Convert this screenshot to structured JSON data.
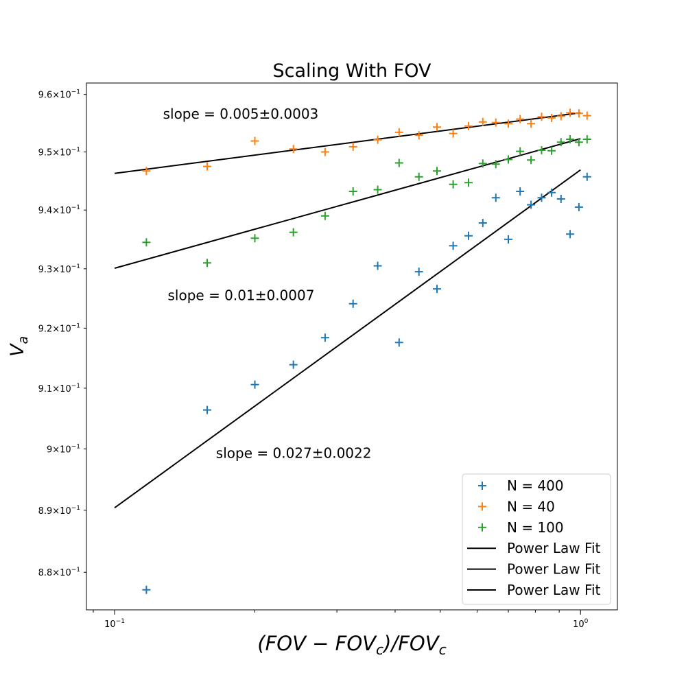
{
  "chart_data": {
    "type": "scatter",
    "title": "Scaling With FOV",
    "xlabel": "(FOV − FOV_c)/FOV_c",
    "ylabel": "V_a",
    "xscale": "log",
    "yscale": "log",
    "xlim": [
      0.087,
      1.2
    ],
    "ylim": [
      0.874,
      0.962
    ],
    "xticks": [
      {
        "value": 0.1,
        "base": "10",
        "exp": "−1"
      },
      {
        "value": 1.0,
        "base": "10",
        "exp": "0"
      }
    ],
    "yticks": [
      {
        "value": 0.88,
        "mant": "8.8",
        "exp": "−1"
      },
      {
        "value": 0.89,
        "mant": "8.9",
        "exp": "−1"
      },
      {
        "value": 0.9,
        "mant": "9",
        "exp": "−1"
      },
      {
        "value": 0.91,
        "mant": "9.1",
        "exp": "−1"
      },
      {
        "value": 0.92,
        "mant": "9.2",
        "exp": "−1"
      },
      {
        "value": 0.93,
        "mant": "9.3",
        "exp": "−1"
      },
      {
        "value": 0.94,
        "mant": "9.4",
        "exp": "−1"
      },
      {
        "value": 0.95,
        "mant": "9.5",
        "exp": "−1"
      },
      {
        "value": 0.96,
        "mant": "9.6",
        "exp": "−1"
      }
    ],
    "series": [
      {
        "name": "N = 400",
        "color": "#1f77b4",
        "marker": "plus",
        "x": [
          0.117,
          0.158,
          0.2,
          0.242,
          0.283,
          0.325,
          0.367,
          0.408,
          0.45,
          0.492,
          0.533,
          0.575,
          0.617,
          0.658,
          0.7,
          0.742,
          0.783,
          0.825,
          0.867,
          0.908,
          0.95,
          0.992,
          1.033
        ],
        "y": [
          0.8772,
          0.9064,
          0.9106,
          0.9139,
          0.9184,
          0.9241,
          0.9305,
          0.9176,
          0.9295,
          0.9266,
          0.9339,
          0.9356,
          0.9378,
          0.9421,
          0.935,
          0.9432,
          0.9409,
          0.9421,
          0.943,
          0.9419,
          0.9359,
          0.9405,
          0.9457
        ]
      },
      {
        "name": "N = 40",
        "color": "#ff7f0e",
        "marker": "plus",
        "x": [
          0.117,
          0.158,
          0.2,
          0.242,
          0.283,
          0.325,
          0.367,
          0.408,
          0.45,
          0.492,
          0.533,
          0.575,
          0.617,
          0.658,
          0.7,
          0.742,
          0.783,
          0.825,
          0.867,
          0.908,
          0.95,
          0.992,
          1.033
        ],
        "y": [
          0.9467,
          0.9475,
          0.9519,
          0.9505,
          0.95,
          0.9509,
          0.9521,
          0.9534,
          0.9529,
          0.9543,
          0.9532,
          0.9545,
          0.9552,
          0.9551,
          0.9549,
          0.9557,
          0.9549,
          0.9561,
          0.9559,
          0.9562,
          0.9568,
          0.9567,
          0.9563
        ]
      },
      {
        "name": "N = 100",
        "color": "#2ca02c",
        "marker": "plus",
        "x": [
          0.117,
          0.158,
          0.2,
          0.242,
          0.283,
          0.325,
          0.367,
          0.408,
          0.45,
          0.492,
          0.533,
          0.575,
          0.617,
          0.658,
          0.7,
          0.742,
          0.783,
          0.825,
          0.867,
          0.908,
          0.95,
          0.992,
          1.033
        ],
        "y": [
          0.9345,
          0.931,
          0.9352,
          0.9362,
          0.939,
          0.9432,
          0.9435,
          0.9481,
          0.9457,
          0.9467,
          0.9444,
          0.9447,
          0.948,
          0.9479,
          0.9487,
          0.9501,
          0.9486,
          0.9503,
          0.9502,
          0.9517,
          0.9522,
          0.9517,
          0.9522
        ]
      }
    ],
    "fits": [
      {
        "name": "Power Law Fit",
        "color": "#000000",
        "x": [
          0.1,
          1.0
        ],
        "y": [
          0.8904,
          0.9469
        ]
      },
      {
        "name": "Power Law Fit",
        "color": "#000000",
        "x": [
          0.1,
          1.0
        ],
        "y": [
          0.9463,
          0.9568
        ]
      },
      {
        "name": "Power Law Fit",
        "color": "#000000",
        "x": [
          0.1,
          1.0
        ],
        "y": [
          0.9301,
          0.9523
        ]
      }
    ],
    "annotations": [
      {
        "text": "slope = 0.005±0.0003",
        "x": 0.127,
        "y": 0.9558
      },
      {
        "text": "slope = 0.01±0.0007",
        "x": 0.13,
        "y": 0.9247
      },
      {
        "text": "slope = 0.027±0.0022",
        "x": 0.165,
        "y": 0.8985
      }
    ],
    "legend": {
      "position": "lower right",
      "entries": [
        {
          "label": "N = 400",
          "kind": "marker",
          "color": "#1f77b4"
        },
        {
          "label": "N = 40",
          "kind": "marker",
          "color": "#ff7f0e"
        },
        {
          "label": "N = 100",
          "kind": "marker",
          "color": "#2ca02c"
        },
        {
          "label": "Power Law Fit",
          "kind": "line",
          "color": "#000000"
        },
        {
          "label": "Power Law Fit",
          "kind": "line",
          "color": "#000000"
        },
        {
          "label": "Power Law Fit",
          "kind": "line",
          "color": "#000000"
        }
      ]
    }
  }
}
